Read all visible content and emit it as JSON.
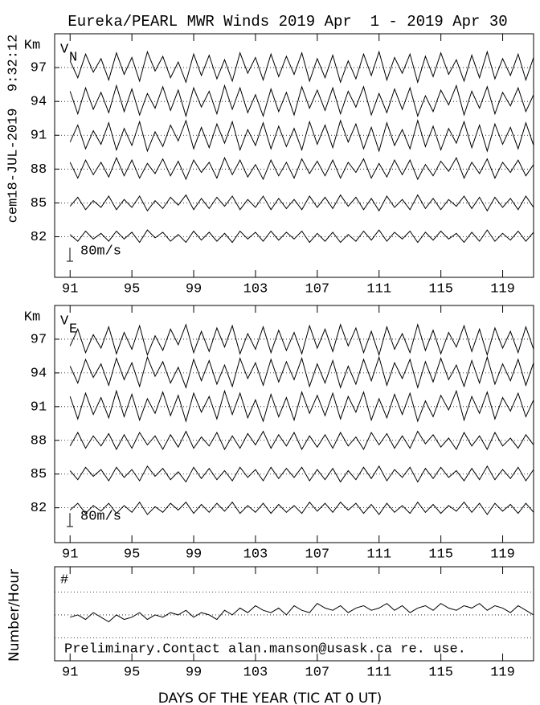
{
  "title": "Eureka/PEARL MWR Winds 2019 Apr  1 - 2019 Apr 30",
  "run_stamp": "cem18-JUL-2019  9:32:12",
  "chart_data": [
    {
      "type": "line",
      "y_label": "Km",
      "panel_label": "V",
      "panel_label_sub": "N",
      "color": "#000000",
      "grid": true,
      "x": [
        91,
        91.5,
        92,
        92.5,
        93,
        93.5,
        94,
        94.5,
        95,
        95.5,
        96,
        96.5,
        97,
        97.5,
        98,
        98.5,
        99,
        99.5,
        100,
        100.5,
        101,
        101.5,
        102,
        102.5,
        103,
        103.5,
        104,
        104.5,
        105,
        105.5,
        106,
        106.5,
        107,
        107.5,
        108,
        108.5,
        109,
        109.5,
        110,
        110.5,
        111,
        111.5,
        112,
        112.5,
        113,
        113.5,
        114,
        114.5,
        115,
        115.5,
        116,
        116.5,
        117,
        117.5,
        118,
        118.5,
        119,
        119.5,
        120,
        120.5,
        121
      ],
      "xlim": [
        90,
        121
      ],
      "xticks": [
        91,
        95,
        99,
        103,
        107,
        111,
        115,
        119
      ],
      "ylim": [
        78.4,
        100
      ],
      "yticks": [
        82,
        85,
        88,
        91,
        94,
        97
      ],
      "scale_bar": {
        "label": "80m/s",
        "length": 1.2
      },
      "series": [
        {
          "values": [
            97.6,
            96.1,
            98.2,
            96.6,
            97.8,
            95.9,
            98.3,
            96.4,
            97.9,
            95.8,
            98.4,
            96.7,
            98.0,
            96.1,
            97.5,
            95.7,
            98.2,
            96.3,
            98.1,
            96.0,
            97.7,
            95.8,
            98.3,
            96.5,
            97.9,
            95.9,
            98.2,
            96.2,
            98.0,
            96.4,
            98.3,
            95.8,
            97.8,
            96.1,
            98.1,
            95.7,
            97.6,
            96.0,
            98.2,
            96.3,
            98.4,
            95.9,
            97.9,
            96.5,
            98.2,
            95.7,
            98.0,
            96.2,
            98.3,
            96.4,
            97.7,
            95.8,
            98.1,
            96.1,
            98.4,
            96.0,
            97.8,
            96.3,
            98.2,
            95.9,
            97.9
          ]
        },
        {
          "values": [
            94.9,
            92.9,
            95.2,
            93.3,
            94.8,
            93.0,
            95.4,
            93.1,
            95.1,
            92.8,
            94.7,
            93.4,
            95.3,
            93.2,
            95.0,
            92.7,
            95.2,
            93.5,
            94.9,
            92.9,
            95.4,
            93.3,
            95.2,
            93.0,
            94.6,
            92.7,
            95.1,
            93.1,
            94.8,
            92.8,
            95.3,
            93.4,
            95.0,
            93.2,
            95.2,
            92.9,
            94.9,
            93.5,
            95.3,
            92.8,
            94.7,
            93.0,
            95.1,
            93.3,
            95.2,
            92.7,
            94.5,
            93.1,
            95.0,
            93.7,
            95.4,
            92.8,
            94.9,
            93.4,
            95.3,
            92.9,
            94.8,
            93.6,
            95.2,
            93.1,
            94.6
          ]
        },
        {
          "values": [
            90.4,
            91.9,
            89.8,
            91.4,
            90.2,
            92.1,
            89.7,
            91.6,
            90.1,
            92.2,
            89.6,
            91.3,
            90.0,
            91.9,
            90.5,
            92.3,
            89.8,
            91.7,
            89.9,
            92.0,
            90.3,
            92.2,
            89.7,
            91.5,
            90.1,
            92.1,
            89.8,
            91.8,
            90.0,
            91.6,
            89.7,
            92.2,
            90.2,
            91.9,
            89.9,
            92.3,
            90.4,
            92.0,
            89.8,
            91.7,
            89.6,
            92.1,
            90.1,
            91.5,
            89.8,
            92.3,
            90.0,
            91.8,
            89.7,
            91.6,
            90.3,
            92.2,
            89.9,
            91.9,
            89.6,
            92.0,
            90.2,
            91.7,
            89.8,
            92.1,
            90.1
          ]
        },
        {
          "values": [
            88.6,
            87.2,
            88.8,
            87.5,
            88.6,
            87.3,
            89.0,
            87.4,
            88.8,
            87.2,
            88.5,
            87.6,
            88.9,
            87.4,
            88.7,
            87.1,
            88.8,
            87.7,
            88.6,
            87.2,
            89.0,
            87.5,
            88.8,
            87.3,
            88.4,
            87.1,
            88.8,
            87.4,
            88.6,
            87.2,
            88.9,
            87.6,
            88.7,
            87.4,
            88.8,
            87.2,
            88.6,
            87.7,
            88.9,
            87.2,
            88.5,
            87.3,
            88.8,
            87.5,
            88.8,
            87.1,
            88.4,
            87.4,
            88.7,
            87.8,
            89.0,
            87.2,
            88.6,
            87.6,
            88.9,
            87.2,
            88.6,
            87.7,
            88.8,
            87.4,
            88.4
          ]
        },
        {
          "values": [
            84.7,
            85.5,
            84.4,
            85.2,
            84.6,
            85.6,
            84.4,
            85.3,
            84.6,
            85.6,
            84.3,
            85.2,
            84.5,
            85.5,
            84.8,
            85.7,
            84.4,
            85.4,
            84.5,
            85.5,
            84.7,
            85.6,
            84.4,
            85.3,
            84.6,
            85.6,
            84.4,
            85.4,
            84.5,
            85.3,
            84.4,
            85.6,
            84.6,
            85.5,
            84.5,
            85.7,
            84.7,
            85.5,
            84.4,
            85.4,
            84.3,
            85.6,
            84.6,
            85.3,
            84.4,
            85.7,
            84.5,
            85.4,
            84.4,
            85.3,
            84.7,
            85.6,
            84.5,
            85.5,
            84.3,
            85.5,
            84.6,
            85.4,
            84.4,
            85.6,
            84.6
          ]
        },
        {
          "values": [
            82.2,
            81.6,
            82.5,
            81.8,
            82.3,
            81.6,
            82.5,
            81.8,
            82.4,
            81.5,
            82.6,
            81.9,
            82.4,
            81.6,
            82.2,
            81.5,
            82.5,
            81.7,
            82.4,
            81.6,
            82.3,
            81.5,
            82.5,
            81.8,
            82.4,
            81.6,
            82.5,
            81.7,
            82.4,
            81.8,
            82.5,
            81.5,
            82.3,
            81.6,
            82.4,
            81.5,
            82.2,
            81.6,
            82.5,
            81.7,
            82.6,
            81.6,
            82.4,
            81.8,
            82.5,
            81.5,
            82.4,
            81.7,
            82.5,
            81.8,
            82.3,
            81.5,
            82.4,
            81.6,
            82.6,
            81.6,
            82.3,
            81.7,
            82.5,
            81.6,
            82.4
          ]
        }
      ]
    },
    {
      "type": "line",
      "y_label": "Km",
      "panel_label": "V",
      "panel_label_sub": "E",
      "color": "#000000",
      "grid": true,
      "x": [
        91,
        91.5,
        92,
        92.5,
        93,
        93.5,
        94,
        94.5,
        95,
        95.5,
        96,
        96.5,
        97,
        97.5,
        98,
        98.5,
        99,
        99.5,
        100,
        100.5,
        101,
        101.5,
        102,
        102.5,
        103,
        103.5,
        104,
        104.5,
        105,
        105.5,
        106,
        106.5,
        107,
        107.5,
        108,
        108.5,
        109,
        109.5,
        110,
        110.5,
        111,
        111.5,
        112,
        112.5,
        113,
        113.5,
        114,
        114.5,
        115,
        115.5,
        116,
        116.5,
        117,
        117.5,
        118,
        118.5,
        119,
        119.5,
        120,
        120.5,
        121
      ],
      "xlim": [
        90,
        121
      ],
      "xticks": [
        91,
        95,
        99,
        103,
        107,
        111,
        115,
        119
      ],
      "ylim": [
        78.9,
        100
      ],
      "yticks": [
        82,
        85,
        88,
        91,
        94,
        97
      ],
      "scale_bar": {
        "label": "80m/s",
        "length": 1.2
      },
      "series": [
        {
          "values": [
            96.4,
            97.9,
            95.8,
            97.4,
            96.2,
            98.1,
            95.7,
            97.6,
            96.1,
            98.2,
            95.6,
            97.3,
            96.0,
            97.9,
            96.5,
            98.3,
            95.8,
            97.7,
            95.9,
            98.0,
            96.3,
            98.2,
            95.7,
            97.5,
            96.1,
            98.1,
            95.8,
            97.8,
            96.0,
            97.6,
            95.7,
            98.2,
            96.2,
            97.9,
            95.9,
            98.3,
            96.4,
            98.0,
            95.8,
            97.7,
            95.6,
            98.1,
            96.1,
            97.5,
            95.8,
            98.3,
            96.0,
            97.8,
            95.7,
            97.6,
            96.3,
            98.2,
            95.9,
            97.9,
            95.6,
            98.0,
            96.2,
            97.7,
            95.8,
            98.1,
            96.1
          ]
        },
        {
          "values": [
            94.6,
            93.1,
            95.2,
            93.6,
            94.8,
            92.9,
            95.3,
            93.4,
            94.9,
            92.8,
            95.4,
            93.7,
            95.0,
            93.1,
            94.5,
            92.7,
            95.2,
            93.3,
            95.1,
            93.0,
            94.7,
            92.8,
            95.3,
            93.5,
            94.9,
            92.9,
            95.2,
            93.2,
            95.0,
            93.4,
            95.3,
            92.8,
            94.8,
            93.1,
            95.1,
            92.7,
            94.6,
            93.0,
            95.2,
            93.3,
            95.4,
            92.9,
            94.9,
            93.5,
            95.2,
            92.7,
            95.0,
            93.2,
            95.3,
            93.4,
            94.7,
            92.8,
            95.1,
            93.1,
            95.4,
            93.0,
            94.8,
            93.3,
            95.2,
            92.9,
            94.9
          ]
        },
        {
          "values": [
            91.9,
            89.9,
            92.2,
            90.3,
            91.8,
            90.0,
            92.4,
            90.1,
            92.1,
            89.8,
            91.7,
            90.4,
            92.3,
            90.2,
            92.0,
            89.7,
            92.2,
            90.5,
            91.9,
            89.9,
            92.4,
            90.3,
            92.2,
            90.0,
            91.6,
            89.7,
            92.1,
            90.1,
            91.8,
            89.8,
            92.3,
            90.4,
            92.0,
            90.2,
            92.2,
            89.9,
            91.9,
            90.5,
            92.3,
            89.8,
            91.7,
            90.0,
            92.1,
            90.3,
            92.2,
            89.7,
            91.5,
            90.1,
            92.0,
            90.7,
            92.4,
            89.8,
            91.9,
            90.4,
            92.3,
            89.9,
            91.8,
            90.6,
            92.2,
            90.1,
            91.6
          ]
        },
        {
          "values": [
            87.5,
            88.7,
            87.3,
            88.4,
            87.5,
            88.6,
            87.2,
            88.5,
            87.3,
            88.7,
            87.6,
            88.4,
            87.2,
            88.5,
            87.4,
            88.8,
            87.3,
            88.3,
            87.5,
            88.7,
            87.2,
            88.4,
            87.3,
            88.6,
            87.6,
            88.8,
            87.3,
            88.5,
            87.5,
            88.7,
            87.2,
            88.4,
            87.4,
            88.5,
            87.3,
            88.7,
            87.5,
            88.3,
            87.2,
            88.7,
            87.6,
            88.6,
            87.3,
            88.4,
            87.3,
            88.8,
            87.7,
            88.5,
            87.4,
            88.2,
            87.2,
            88.7,
            87.5,
            88.4,
            87.2,
            88.7,
            87.5,
            88.2,
            87.3,
            88.5,
            87.6
          ]
        },
        {
          "values": [
            85.3,
            84.5,
            85.6,
            84.8,
            85.4,
            84.4,
            85.6,
            84.7,
            85.4,
            84.4,
            85.7,
            84.8,
            85.5,
            84.5,
            85.2,
            84.3,
            85.6,
            84.6,
            85.5,
            84.5,
            85.3,
            84.4,
            85.6,
            84.7,
            85.4,
            84.4,
            85.6,
            84.6,
            85.5,
            84.7,
            85.6,
            84.4,
            85.4,
            84.5,
            85.5,
            84.3,
            85.3,
            84.5,
            85.6,
            84.6,
            85.7,
            84.4,
            85.4,
            84.7,
            85.6,
            84.3,
            85.5,
            84.6,
            85.6,
            84.7,
            85.3,
            84.4,
            85.5,
            84.5,
            85.7,
            84.5,
            85.4,
            84.6,
            85.6,
            84.4,
            85.4
          ]
        },
        {
          "values": [
            81.8,
            82.4,
            81.5,
            82.2,
            81.7,
            82.4,
            81.5,
            82.2,
            81.6,
            82.5,
            81.4,
            82.1,
            81.6,
            82.4,
            81.8,
            82.5,
            81.5,
            82.3,
            81.6,
            82.4,
            81.7,
            82.5,
            81.5,
            82.2,
            81.6,
            82.4,
            81.5,
            82.3,
            81.6,
            82.2,
            81.5,
            82.5,
            81.7,
            82.4,
            81.6,
            82.5,
            81.8,
            82.4,
            81.5,
            82.3,
            81.4,
            82.4,
            81.6,
            82.2,
            81.5,
            82.5,
            81.6,
            82.3,
            81.5,
            82.2,
            81.7,
            82.5,
            81.6,
            82.4,
            81.4,
            82.4,
            81.7,
            82.3,
            81.5,
            82.4,
            81.6
          ]
        }
      ]
    },
    {
      "type": "line",
      "y_label": "Number/Hour",
      "panel_label": "#",
      "note": "Preliminary.Contact alan.manson@usask.ca re. use.",
      "xlabel": "DAYS OF THE YEAR (TIC AT 0 UT)",
      "color": "#000000",
      "x": [
        91,
        91.5,
        92,
        92.5,
        93,
        93.5,
        94,
        94.5,
        95,
        95.5,
        96,
        96.5,
        97,
        97.5,
        98,
        98.5,
        99,
        99.5,
        100,
        100.5,
        101,
        101.5,
        102,
        102.5,
        103,
        103.5,
        104,
        104.5,
        105,
        105.5,
        106,
        106.5,
        107,
        107.5,
        108,
        108.5,
        109,
        109.5,
        110,
        110.5,
        111,
        111.5,
        112,
        112.5,
        113,
        113.5,
        114,
        114.5,
        115,
        115.5,
        116,
        116.5,
        117,
        117.5,
        118,
        118.5,
        119,
        119.5,
        120,
        120.5,
        121
      ],
      "xlim": [
        90,
        121
      ],
      "xticks": [
        91,
        95,
        99,
        103,
        107,
        111,
        115,
        119
      ],
      "ylim": [
        0,
        4.1
      ],
      "grid_lines": [
        1,
        2,
        3
      ],
      "series": [
        {
          "values": [
            1.9,
            2.0,
            1.8,
            2.1,
            1.9,
            1.7,
            2.0,
            1.8,
            1.9,
            2.1,
            1.8,
            2.0,
            1.9,
            2.1,
            2.0,
            2.2,
            1.9,
            2.1,
            2.0,
            1.8,
            2.2,
            2.0,
            2.3,
            2.1,
            2.4,
            2.2,
            2.1,
            2.3,
            2.0,
            2.4,
            2.2,
            2.1,
            2.5,
            2.3,
            2.2,
            2.4,
            2.1,
            2.3,
            2.4,
            2.2,
            2.3,
            2.5,
            2.2,
            2.4,
            2.1,
            2.3,
            2.4,
            2.2,
            2.5,
            2.3,
            2.2,
            2.4,
            2.3,
            2.5,
            2.2,
            2.4,
            2.3,
            2.1,
            2.4,
            2.2,
            2.0
          ]
        }
      ]
    }
  ]
}
